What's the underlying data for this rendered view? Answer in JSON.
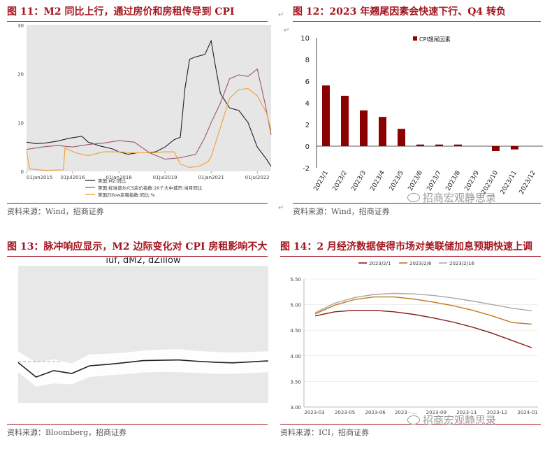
{
  "panels": [
    {
      "title": "图 11：M2 同比上行，通过房价和房租传导到 CPI",
      "source": "资料来源：Wind，招商证券"
    },
    {
      "title": "图 12：2023 年翘尾因素会快速下行、Q4 转负",
      "source": "资料来源：Wind，招商证券",
      "watermark": "招商宏观静思录"
    },
    {
      "title": "图 13：脉冲响应显示，M2 边际变化对 CPI 房租影响不大",
      "source": "资料来源：Bloomberg，招商证券"
    },
    {
      "title": "图 14：2 月经济数据使得市场对美联储加息预期快速上调",
      "source": "资料来源：ICI，招商证券",
      "watermark": "招商宏观静思录"
    }
  ],
  "colors": {
    "accent": "#a3161f",
    "m2": "#222222",
    "case_shiller": "#a0566a",
    "zillow": "#f0a030",
    "bar": "#8b0000",
    "fed1": "#8b1a1a",
    "fed2": "#c07a1a",
    "fed3": "#a8a8a8"
  },
  "chart_data": [
    {
      "type": "line",
      "x_ticks": [
        "01jan2015",
        "01jul2016",
        "01jan2018",
        "01jul2019",
        "01jan2021",
        "01jul2022"
      ],
      "ylim": [
        0,
        30
      ],
      "y_ticks": [
        "0",
        "10",
        "20",
        "30"
      ],
      "series": [
        {
          "name": "美国:M2:同比",
          "x": [
            2015.0,
            2015.3,
            2015.6,
            2016.0,
            2016.4,
            2016.8,
            2017.0,
            2017.4,
            2017.8,
            2018.0,
            2018.3,
            2018.6,
            2018.9,
            2019.2,
            2019.5,
            2019.8,
            2020.0,
            2020.15,
            2020.3,
            2020.5,
            2020.8,
            2021.0,
            2021.1,
            2021.3,
            2021.6,
            2021.9,
            2022.2,
            2022.5,
            2022.8,
            2022.95
          ],
          "y": [
            6.0,
            5.7,
            5.8,
            6.2,
            6.8,
            7.2,
            6.0,
            5.2,
            4.6,
            4.0,
            3.5,
            3.8,
            3.8,
            4.0,
            5.0,
            6.5,
            7.0,
            17.0,
            23.0,
            23.5,
            24.0,
            26.8,
            23.0,
            16.0,
            13.0,
            12.5,
            10.0,
            5.0,
            2.5,
            1.0
          ]
        },
        {
          "name": "美国:标准普尔/CS房价指数:20个大中城市:当月同比",
          "x": [
            2015.0,
            2015.5,
            2016.0,
            2016.5,
            2017.0,
            2017.5,
            2018.0,
            2018.5,
            2019.0,
            2019.5,
            2020.0,
            2020.5,
            2020.8,
            2021.0,
            2021.3,
            2021.6,
            2021.9,
            2022.2,
            2022.5,
            2022.75,
            2022.95
          ],
          "y": [
            4.5,
            5.0,
            5.3,
            5.0,
            5.5,
            5.8,
            6.3,
            6.0,
            3.8,
            2.5,
            2.8,
            3.5,
            7.0,
            10.0,
            14.0,
            19.0,
            19.8,
            19.5,
            21.0,
            14.0,
            7.5
          ]
        },
        {
          "name": "美国Zillow房租指数:同比:%",
          "x": [
            2015.0,
            2015.1,
            2015.6,
            2016.2,
            2016.25,
            2016.6,
            2017.0,
            2017.5,
            2018.0,
            2018.5,
            2019.0,
            2019.5,
            2019.8,
            2020.0,
            2020.3,
            2020.6,
            2020.9,
            2021.0,
            2021.3,
            2021.6,
            2021.9,
            2022.2,
            2022.5,
            2022.8,
            2022.95
          ],
          "y": [
            4.2,
            0.5,
            0.2,
            0.3,
            4.8,
            3.8,
            3.2,
            4.0,
            4.0,
            3.8,
            3.8,
            4.0,
            4.0,
            1.5,
            0.8,
            1.0,
            2.0,
            3.0,
            9.0,
            15.0,
            16.8,
            17.0,
            15.5,
            12.0,
            8.5
          ]
        }
      ]
    },
    {
      "type": "bar",
      "legend": "CPI翘尾因素",
      "categories": [
        "2023/1",
        "2023/2",
        "2023/3",
        "2023/4",
        "2023/5",
        "2023/6",
        "2023/7",
        "2023/8",
        "2023/9",
        "2023/10",
        "2023/11",
        "2023/12"
      ],
      "values": [
        5.6,
        4.65,
        3.3,
        2.7,
        1.6,
        0.15,
        0.15,
        0.15,
        0.0,
        -0.45,
        -0.3,
        0.0
      ],
      "ylim": [
        -2,
        10
      ],
      "y_ticks": [
        "-2",
        "0",
        "2",
        "4",
        "6",
        "8",
        "10"
      ]
    },
    {
      "type": "line",
      "title": "iuf, dM2, dZillow",
      "steps": [
        0,
        1,
        2,
        3,
        4,
        5,
        6,
        7,
        8,
        9,
        10,
        11,
        12,
        13,
        14
      ],
      "irf": [
        0.0,
        -0.9,
        -0.5,
        -0.68,
        -0.2,
        -0.12,
        0.0,
        0.12,
        0.14,
        0.16,
        0.08,
        0.02,
        -0.02,
        0.04,
        0.1
      ],
      "ci_lower": [
        -0.6,
        -1.5,
        -1.3,
        -1.35,
        -0.9,
        -0.8,
        -0.72,
        -0.62,
        -0.58,
        -0.6,
        -0.64,
        -0.7,
        -0.7,
        -0.66,
        -0.6
      ],
      "ci_upper": [
        0.7,
        0.0,
        0.2,
        -0.05,
        0.5,
        0.55,
        0.62,
        0.74,
        0.8,
        0.82,
        0.72,
        0.66,
        0.62,
        0.66,
        0.7
      ],
      "ylim": [
        -2.5,
        6.0
      ]
    },
    {
      "type": "line",
      "x_ticks": [
        "2023-03",
        "2023-05",
        "2023-06",
        "2023 - ...",
        "2023-09",
        "2023-11",
        "2023-12",
        "2024-01"
      ],
      "ylim": [
        3.0,
        5.5
      ],
      "y_ticks": [
        "3.00",
        "3.50",
        "4.00",
        "4.50",
        "5.00",
        "5.50"
      ],
      "series": [
        {
          "name": "2023/2/1",
          "values": [
            4.78,
            4.86,
            4.89,
            4.89,
            4.86,
            4.81,
            4.74,
            4.66,
            4.56,
            4.44,
            4.3,
            4.16
          ]
        },
        {
          "name": "2023/2/6",
          "values": [
            4.82,
            4.99,
            5.1,
            5.15,
            5.15,
            5.11,
            5.05,
            4.98,
            4.89,
            4.78,
            4.65,
            4.62
          ]
        },
        {
          "name": "2023/2/16",
          "values": [
            4.84,
            5.03,
            5.14,
            5.2,
            5.22,
            5.21,
            5.18,
            5.13,
            5.07,
            5.0,
            4.93,
            4.88
          ]
        }
      ]
    }
  ]
}
